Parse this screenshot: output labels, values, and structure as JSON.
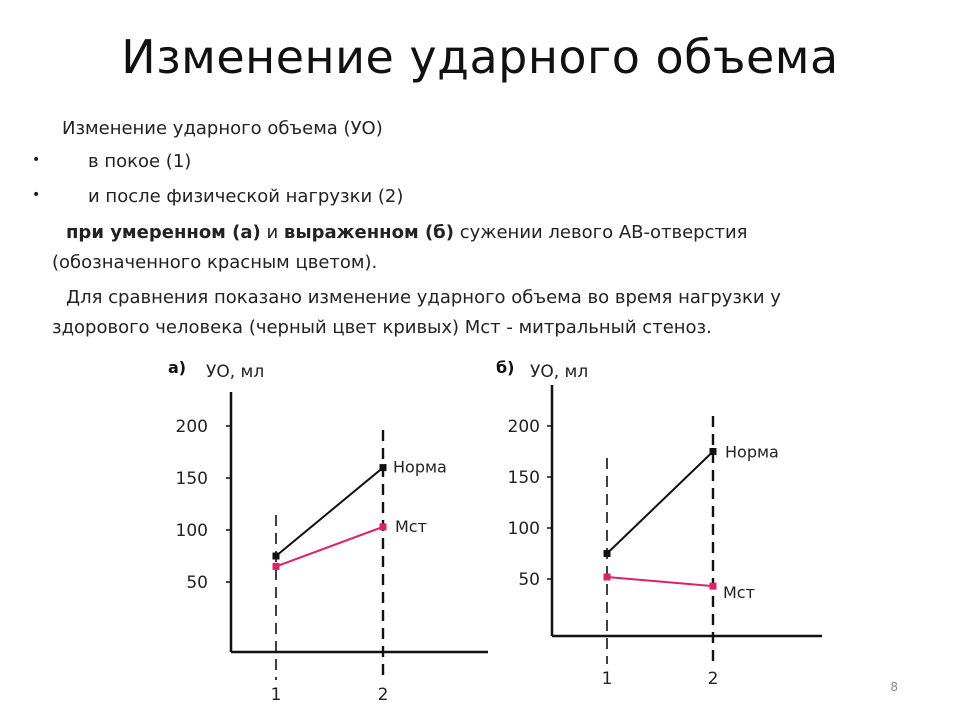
{
  "slide": {
    "title": "Изменение ударного объема",
    "intro": "Изменение ударного объема (УО)",
    "bullets": [
      "в покое (1)",
      "и после физической нагрузки (2)"
    ],
    "bullet_symbol": "•",
    "para1": {
      "bold1": "при умеренном (а)",
      "t1": " и ",
      "bold2": "выраженном (б)",
      "t2": " сужении левого АВ-отверстия",
      "line2": "(обозначенного красным цветом)."
    },
    "para2": {
      "line1": "Для сравнения показано изменение ударного объема во время нагрузки у",
      "line2": "здорового человека (черный цвет кривых) Мст - митральный стеноз."
    },
    "page_number": "8"
  },
  "colors": {
    "norm": "#111111",
    "mst": "#e0206a",
    "axis": "#111111"
  },
  "chart_data": [
    {
      "type": "line",
      "panel_label": "а)",
      "ylabel": "УО, мл",
      "y_ticks": [
        "200",
        "150",
        "100",
        "50"
      ],
      "y_tick_values": [
        200,
        150,
        100,
        50
      ],
      "x_ticks": [
        "1",
        "2"
      ],
      "x": [
        1,
        2
      ],
      "series": [
        {
          "name": "Норма",
          "values": [
            75,
            160
          ]
        },
        {
          "name": "Мст",
          "values": [
            65,
            103
          ]
        }
      ]
    },
    {
      "type": "line",
      "panel_label": "б)",
      "ylabel": "УО, мл",
      "y_ticks": [
        "200",
        "150",
        "100",
        "50"
      ],
      "y_tick_values": [
        200,
        150,
        100,
        50
      ],
      "x_ticks": [
        "1",
        "2"
      ],
      "x": [
        1,
        2
      ],
      "series": [
        {
          "name": "Норма",
          "values": [
            75,
            175
          ]
        },
        {
          "name": "Мст",
          "values": [
            52,
            43
          ]
        }
      ]
    }
  ]
}
